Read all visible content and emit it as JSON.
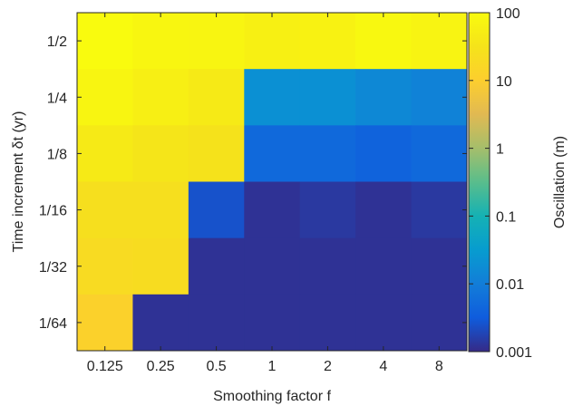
{
  "chart_data": {
    "type": "heatmap",
    "x": {
      "label": "Smoothing factor f",
      "categories": [
        "0.125",
        "0.25",
        "0.5",
        "1",
        "2",
        "4",
        "8"
      ]
    },
    "y": {
      "label": "Time increment δt (yr)",
      "categories": [
        "1/2",
        "1/4",
        "1/8",
        "1/16",
        "1/32",
        "1/64"
      ]
    },
    "values_m": [
      [
        100,
        80,
        75,
        60,
        65,
        85,
        70
      ],
      [
        75,
        55,
        45,
        0.02,
        0.02,
        0.015,
        0.012
      ],
      [
        45,
        35,
        30,
        0.005,
        0.005,
        0.004,
        0.005
      ],
      [
        25,
        25,
        0.0025,
        0.0012,
        0.0014,
        0.0012,
        0.0014
      ],
      [
        20,
        22,
        0.0012,
        0.0012,
        0.0012,
        0.0012,
        0.0012
      ],
      [
        12,
        0.0012,
        0.0012,
        0.0012,
        0.0012,
        0.0012,
        0.0012
      ]
    ],
    "colorbar": {
      "label": "Oscillation (m)",
      "scale": "log",
      "range": [
        0.001,
        100
      ],
      "ticks": [
        "0.001",
        "0.01",
        "0.1",
        "1",
        "10",
        "100"
      ],
      "colormap": "parula"
    },
    "grid": false,
    "legend": "colorbar-right"
  }
}
